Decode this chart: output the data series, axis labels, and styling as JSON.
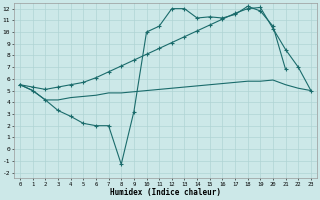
{
  "background_color": "#cce8e8",
  "grid_color": "#b0d4d4",
  "line_color": "#1a6b6b",
  "xlabel": "Humidex (Indice chaleur)",
  "xlim": [
    -0.5,
    23.5
  ],
  "ylim": [
    -2.5,
    12.5
  ],
  "xticks": [
    0,
    1,
    2,
    3,
    4,
    5,
    6,
    7,
    8,
    9,
    10,
    11,
    12,
    13,
    14,
    15,
    16,
    17,
    18,
    19,
    20,
    21,
    22,
    23
  ],
  "yticks": [
    -2,
    -1,
    0,
    1,
    2,
    3,
    4,
    5,
    6,
    7,
    8,
    9,
    10,
    11,
    12
  ],
  "line_zigzag_x": [
    0,
    1,
    2,
    3,
    4,
    5,
    6,
    7,
    8,
    9,
    10,
    11,
    12,
    13,
    14,
    15,
    16,
    17,
    18,
    19,
    20,
    21
  ],
  "line_zigzag_y": [
    5.5,
    5.0,
    4.2,
    3.3,
    2.8,
    2.2,
    2.0,
    2.0,
    -1.3,
    3.2,
    10.0,
    10.5,
    12.0,
    12.0,
    11.2,
    11.3,
    11.2,
    11.5,
    12.2,
    11.8,
    10.5,
    6.8
  ],
  "line_flat_x": [
    0,
    1,
    2,
    3,
    4,
    5,
    6,
    7,
    8,
    9,
    10,
    11,
    12,
    13,
    14,
    15,
    16,
    17,
    18,
    19,
    20,
    21,
    22,
    23
  ],
  "line_flat_y": [
    5.5,
    5.0,
    4.2,
    4.2,
    4.4,
    4.5,
    4.6,
    4.8,
    4.8,
    4.9,
    5.0,
    5.1,
    5.2,
    5.3,
    5.4,
    5.5,
    5.6,
    5.7,
    5.8,
    5.8,
    5.9,
    5.5,
    5.2,
    5.0
  ],
  "line_rise_x": [
    0,
    1,
    2,
    3,
    4,
    5,
    6,
    7,
    8,
    9,
    10,
    11,
    12,
    13,
    14,
    15,
    16,
    17,
    18,
    19,
    20,
    21,
    22,
    23
  ],
  "line_rise_y": [
    5.5,
    5.3,
    5.1,
    5.3,
    5.5,
    5.7,
    6.1,
    6.6,
    7.1,
    7.6,
    8.1,
    8.6,
    9.1,
    9.6,
    10.1,
    10.6,
    11.1,
    11.6,
    12.0,
    12.1,
    10.3,
    8.5,
    7.0,
    5.0
  ]
}
